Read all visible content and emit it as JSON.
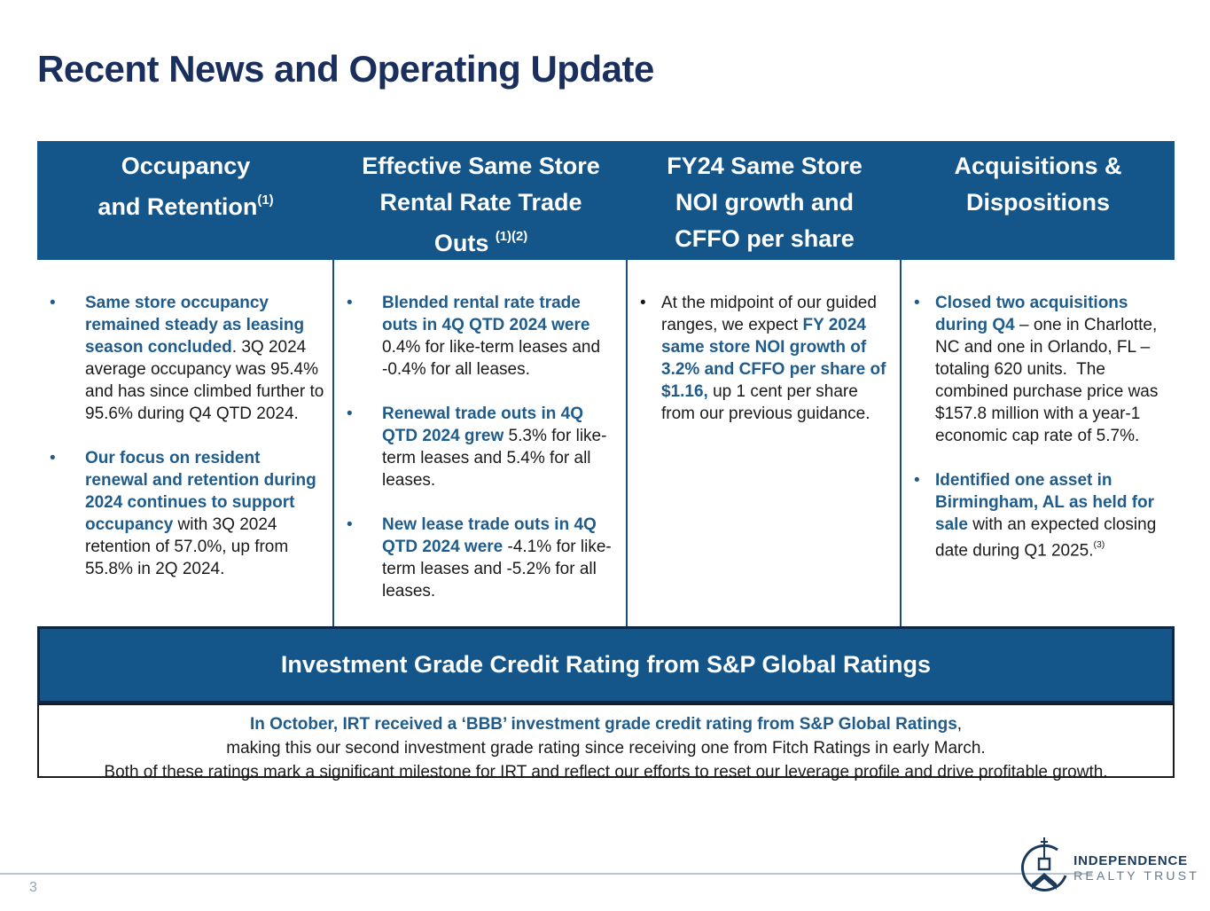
{
  "page": {
    "title": "Recent News and Operating Update",
    "page_number": "3"
  },
  "colors": {
    "header_blue": "#15568A",
    "banner_border": "#0D2847",
    "title_navy": "#1A2F5E",
    "accent_blue": "#1F5C8C",
    "body_black": "#1a1a1a",
    "footer_rule": "#b9c5cf"
  },
  "table": {
    "columns": [
      {
        "id": "occupancy-retention",
        "header_lines": [
          [
            {
              "t": "Occupancy"
            }
          ],
          [
            {
              "t": "and Retention"
            },
            {
              "t": "(1)",
              "sup": true
            }
          ]
        ],
        "bullets": [
          {
            "segments": [
              {
                "t": "Same store occupancy remained steady as leasing season concluded",
                "b": true
              },
              {
                "t": ". 3Q 2024 average occupancy was 95.4% and has since climbed further to 95.6% during Q4 QTD 2024."
              }
            ]
          },
          {
            "segments": [
              {
                "t": "Our focus on resident renewal and retention during 2024 continues to support occupancy",
                "b": true
              },
              {
                "t": " with 3Q 2024 retention of 57.0%, up from 55.8% in 2Q 2024."
              }
            ]
          }
        ]
      },
      {
        "id": "rental-rate-trade-outs",
        "header_lines": [
          [
            {
              "t": "Effective Same Store"
            }
          ],
          [
            {
              "t": "Rental Rate Trade"
            }
          ],
          [
            {
              "t": "Outs "
            },
            {
              "t": "(1)(2)",
              "sup": true
            }
          ]
        ],
        "bullets": [
          {
            "segments": [
              {
                "t": "Blended rental rate trade outs in 4Q QTD 2024 were",
                "b": true
              },
              {
                "t": " 0.4% for like-term leases and -0.4% for all leases."
              }
            ]
          },
          {
            "segments": [
              {
                "t": "Renewal trade outs in 4Q QTD 2024 grew",
                "b": true
              },
              {
                "t": " 5.3% for like-term leases and 5.4% for all leases."
              }
            ]
          },
          {
            "segments": [
              {
                "t": "New lease trade outs in 4Q QTD 2024 were",
                "b": true
              },
              {
                "t": " -4.1% for like-term leases and -5.2% for all leases."
              }
            ]
          }
        ]
      },
      {
        "id": "noi-cffo-guidance",
        "header_lines": [
          [
            {
              "t": "FY24 Same Store"
            }
          ],
          [
            {
              "t": "NOI growth and"
            }
          ],
          [
            {
              "t": "CFFO per share"
            }
          ]
        ],
        "bullets": [
          {
            "segments": [
              {
                "t": "At the midpoint of our guided ranges, we expect "
              },
              {
                "t": "FY 2024 same store NOI growth of 3.2% and CFFO per share of $1.16,",
                "b": true
              },
              {
                "t": " up 1 cent per share from our previous guidance."
              }
            ]
          }
        ]
      },
      {
        "id": "acquisitions-dispositions",
        "header_lines": [
          [
            {
              "t": "Acquisitions &"
            }
          ],
          [
            {
              "t": "Dispositions"
            }
          ]
        ],
        "bullets": [
          {
            "segments": [
              {
                "t": "Closed two acquisitions during Q4",
                "b": true
              },
              {
                "t": " – one in Charlotte, NC and one in Orlando, FL – totaling 620 units.  The combined purchase price was $157.8 million with a year-1 economic cap rate of 5.7%."
              }
            ]
          },
          {
            "segments": [
              {
                "t": "Identified one asset in Birmingham, AL as held for sale",
                "b": true
              },
              {
                "t": " with an expected closing date during Q1 2025."
              },
              {
                "t": "(3)",
                "sup": true
              }
            ]
          }
        ]
      }
    ]
  },
  "banner": {
    "title": "Investment Grade Credit Rating from S&P Global Ratings"
  },
  "info_box": {
    "line1_segments": [
      {
        "t": "In October, IRT received a ‘BBB’ investment grade credit rating from S&P Global Ratings",
        "b": true
      },
      {
        "t": ","
      }
    ],
    "line2": "making this our second investment grade rating since receiving one from Fitch Ratings in early March.",
    "line3": "Both of these ratings mark a significant milestone for IRT and reflect our efforts to reset our leverage profile and drive profitable growth."
  },
  "logo": {
    "icon": "independence-hall-tower-icon",
    "line1": "INDEPENDENCE",
    "line2": "REALTY TRUST"
  }
}
